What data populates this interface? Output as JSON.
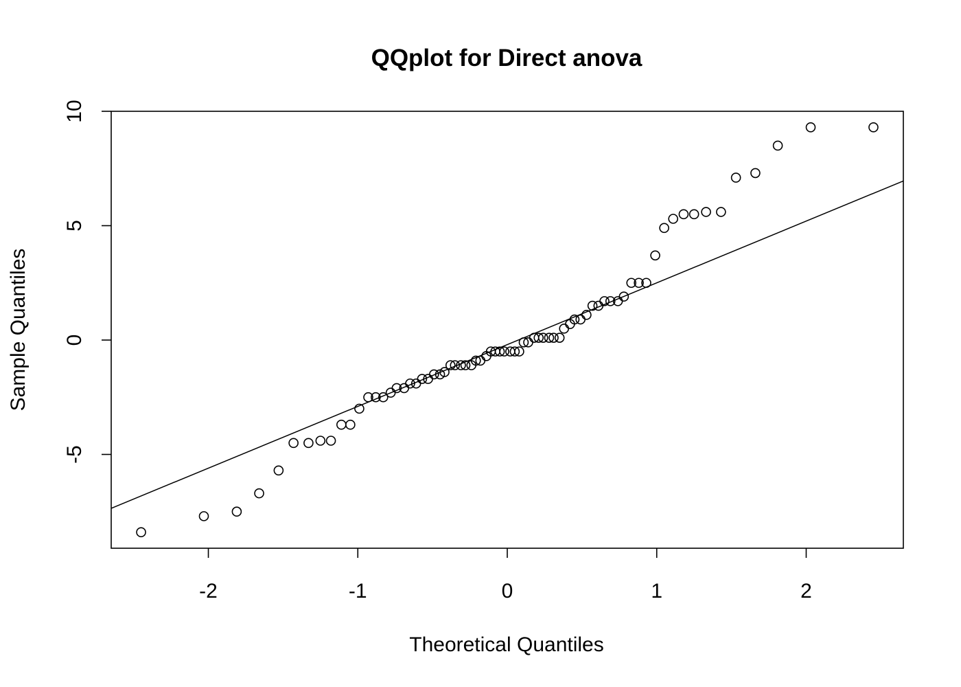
{
  "chart_data": {
    "type": "scatter",
    "title": "QQplot for Direct anova",
    "xlabel": "Theoretical Quantiles",
    "ylabel": "Sample Quantiles",
    "xlim": [
      -2.65,
      2.65
    ],
    "ylim": [
      -9.1,
      10.0
    ],
    "xticks": [
      -2,
      -1,
      0,
      1,
      2
    ],
    "xtick_labels": [
      "-2",
      "-1",
      "0",
      "1",
      "2"
    ],
    "yticks": [
      -5,
      0,
      5,
      10
    ],
    "ytick_labels": [
      "-5",
      "0",
      "5",
      "10"
    ],
    "grid": false,
    "marker": "open-circle",
    "reference_line": {
      "slope": 2.7,
      "intercept": -0.2
    },
    "points": [
      [
        -2.45,
        -8.4
      ],
      [
        -2.03,
        -7.7
      ],
      [
        -1.81,
        -7.5
      ],
      [
        -1.66,
        -6.7
      ],
      [
        -1.53,
        -5.7
      ],
      [
        -1.43,
        -4.5
      ],
      [
        -1.33,
        -4.5
      ],
      [
        -1.25,
        -4.4
      ],
      [
        -1.18,
        -4.4
      ],
      [
        -1.11,
        -3.7
      ],
      [
        -1.05,
        -3.7
      ],
      [
        -0.99,
        -3.0
      ],
      [
        -0.93,
        -2.5
      ],
      [
        -0.88,
        -2.5
      ],
      [
        -0.83,
        -2.5
      ],
      [
        -0.78,
        -2.3
      ],
      [
        -0.74,
        -2.1
      ],
      [
        -0.69,
        -2.1
      ],
      [
        -0.65,
        -1.9
      ],
      [
        -0.61,
        -1.9
      ],
      [
        -0.57,
        -1.7
      ],
      [
        -0.53,
        -1.7
      ],
      [
        -0.49,
        -1.5
      ],
      [
        -0.45,
        -1.5
      ],
      [
        -0.42,
        -1.4
      ],
      [
        -0.38,
        -1.1
      ],
      [
        -0.35,
        -1.1
      ],
      [
        -0.31,
        -1.1
      ],
      [
        -0.28,
        -1.1
      ],
      [
        -0.24,
        -1.1
      ],
      [
        -0.21,
        -0.9
      ],
      [
        -0.18,
        -0.9
      ],
      [
        -0.14,
        -0.7
      ],
      [
        -0.11,
        -0.5
      ],
      [
        -0.08,
        -0.5
      ],
      [
        -0.05,
        -0.5
      ],
      [
        -0.02,
        -0.5
      ],
      [
        0.02,
        -0.5
      ],
      [
        0.05,
        -0.5
      ],
      [
        0.08,
        -0.5
      ],
      [
        0.11,
        -0.1
      ],
      [
        0.14,
        -0.1
      ],
      [
        0.18,
        0.1
      ],
      [
        0.21,
        0.1
      ],
      [
        0.24,
        0.1
      ],
      [
        0.28,
        0.1
      ],
      [
        0.31,
        0.1
      ],
      [
        0.35,
        0.1
      ],
      [
        0.38,
        0.5
      ],
      [
        0.42,
        0.7
      ],
      [
        0.45,
        0.9
      ],
      [
        0.49,
        0.9
      ],
      [
        0.53,
        1.1
      ],
      [
        0.57,
        1.5
      ],
      [
        0.61,
        1.5
      ],
      [
        0.65,
        1.7
      ],
      [
        0.69,
        1.7
      ],
      [
        0.74,
        1.7
      ],
      [
        0.78,
        1.9
      ],
      [
        0.83,
        2.5
      ],
      [
        0.88,
        2.5
      ],
      [
        0.93,
        2.5
      ],
      [
        0.99,
        3.7
      ],
      [
        1.05,
        4.9
      ],
      [
        1.11,
        5.3
      ],
      [
        1.18,
        5.5
      ],
      [
        1.25,
        5.5
      ],
      [
        1.33,
        5.6
      ],
      [
        1.43,
        5.6
      ],
      [
        1.53,
        7.1
      ],
      [
        1.66,
        7.3
      ],
      [
        1.81,
        8.5
      ],
      [
        2.03,
        9.3
      ],
      [
        2.45,
        9.3
      ]
    ]
  }
}
